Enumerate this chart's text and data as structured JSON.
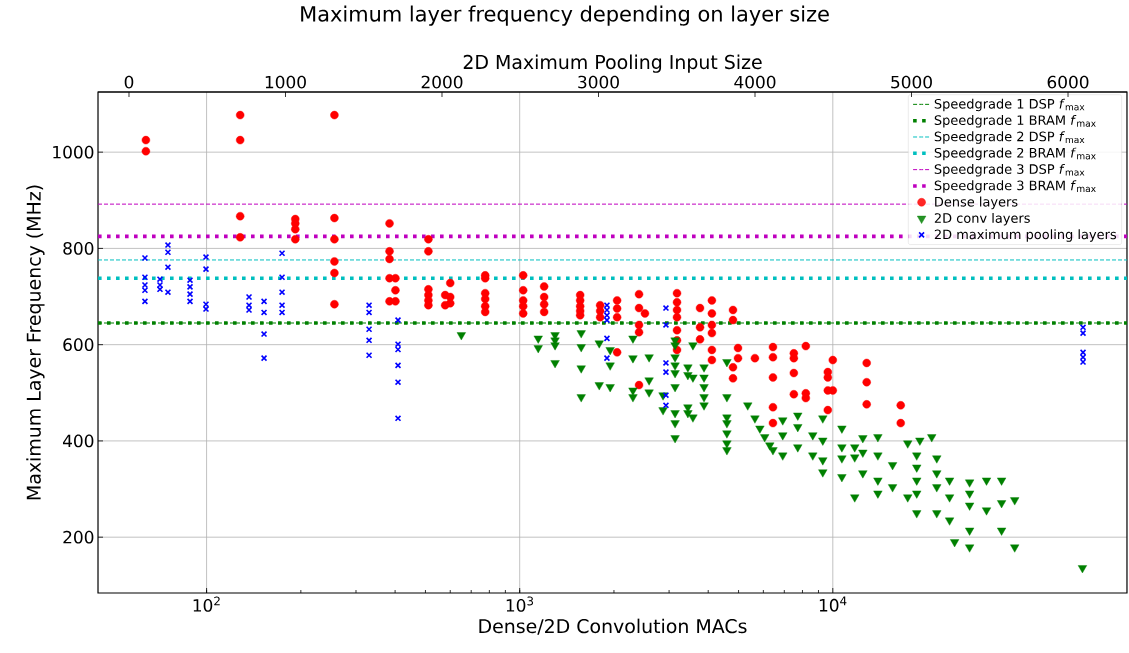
{
  "chart_data": {
    "type": "scatter",
    "title": "Maximum layer frequency depending on layer size",
    "xlabel": "Dense/2D Convolution MACs",
    "x2label": "2D Maximum Pooling Input Size",
    "ylabel": "Maximum Layer Frequency (MHz)",
    "log": "x",
    "grid": true,
    "legend": "top right",
    "xlim": [
      45,
      87000
    ],
    "xticks": [
      {
        "value": 100,
        "label": "10$^{2}$"
      },
      {
        "value": 1000,
        "label": "10$^{3}$"
      },
      {
        "value": 10000,
        "label": "10$^{4}$"
      }
    ],
    "x2lim": [
      -198,
      6377
    ],
    "x2ticks": [
      0,
      1000,
      2000,
      3000,
      4000,
      5000,
      6000
    ],
    "ylim": [
      84,
      1125
    ],
    "yticks": [
      200,
      400,
      600,
      800,
      1000
    ],
    "ref_lines": [
      {
        "axis": "y",
        "value": 645,
        "label": "Speedgrade 1 DSP *f*$_{max}$",
        "color": "#008000",
        "line_style": "dashed"
      },
      {
        "axis": "y",
        "value": 645,
        "label": "Speedgrade 1 BRAM *f*$_{max}$",
        "color": "#008000",
        "line_style": "dotted"
      },
      {
        "axis": "y",
        "value": 776,
        "label": "Speedgrade 2 DSP *f*$_{max}$",
        "color": "#00bfbf",
        "line_style": "dashed"
      },
      {
        "axis": "y",
        "value": 738,
        "label": "Speedgrade 2 BRAM *f*$_{max}$",
        "color": "#00bfbf",
        "line_style": "dotted"
      },
      {
        "axis": "y",
        "value": 892,
        "label": "Speedgrade 3 DSP *f*$_{max}$",
        "color": "#bf00bf",
        "line_style": "dashed"
      },
      {
        "axis": "y",
        "value": 825,
        "label": "Speedgrade 3 BRAM *f*$_{max}$",
        "color": "#bf00bf",
        "line_style": "dotted"
      }
    ],
    "series": [
      {
        "name": "Dense layers",
        "color": "#ff0000",
        "marker": "circle",
        "x": [
          64,
          64,
          128,
          128,
          128,
          128,
          192,
          192,
          192,
          192,
          256,
          256,
          256,
          256,
          256,
          256,
          384,
          384,
          384,
          384,
          384,
          401,
          401,
          401,
          511,
          511,
          511,
          511,
          511,
          511,
          578,
          578,
          600,
          600,
          600,
          776,
          776,
          776,
          776,
          776,
          776,
          1026,
          1026,
          1026,
          1026,
          1026,
          1197,
          1197,
          1197,
          1197,
          1560,
          1560,
          1560,
          1560,
          1560,
          1807,
          1807,
          1807,
          2047,
          2047,
          2047,
          2047,
          2405,
          2405,
          2405,
          2405,
          2405,
          2512,
          3180,
          3180,
          3180,
          3180,
          3180,
          3180,
          3180,
          3767,
          3767,
          3767,
          4110,
          4110,
          4110,
          4110,
          4110,
          4110,
          4800,
          4800,
          4800,
          4800,
          4980,
          4980,
          5640,
          6440,
          6440,
          6440,
          6440,
          6440,
          7510,
          7510,
          7510,
          7510,
          8200,
          8200,
          8200,
          9640,
          9640,
          9640,
          9640,
          10000,
          10000,
          12830,
          12830,
          12830,
          16480,
          16480
        ],
        "values": [
          1025,
          1002,
          1077,
          1025,
          867,
          823,
          861,
          852,
          840,
          819,
          1077,
          863,
          819,
          773,
          749,
          684,
          852,
          794,
          778,
          738,
          690,
          738,
          713,
          690,
          819,
          794,
          715,
          703,
          692,
          682,
          703,
          682,
          728,
          699,
          686,
          744,
          738,
          707,
          695,
          680,
          668,
          744,
          713,
          692,
          680,
          665,
          721,
          699,
          684,
          668,
          703,
          692,
          680,
          670,
          661,
          682,
          670,
          657,
          692,
          675,
          657,
          584,
          705,
          676,
          641,
          626,
          516,
          665,
          707,
          688,
          672,
          657,
          630,
          609,
          589,
          676,
          636,
          611,
          692,
          665,
          641,
          624,
          589,
          568,
          672,
          651,
          553,
          530,
          593,
          572,
          572,
          595,
          574,
          532,
          470,
          437,
          582,
          572,
          541,
          497,
          597,
          499,
          489,
          543,
          532,
          505,
          464,
          568,
          505,
          562,
          522,
          476,
          474,
          437
        ]
      },
      {
        "name": "2D conv layers",
        "color": "#008000",
        "marker": "triangle",
        "x": [
          651,
          1146,
          1146,
          1297,
          1297,
          1297,
          1297,
          1572,
          1572,
          1572,
          1572,
          1795,
          1795,
          1945,
          1945,
          1945,
          2300,
          2300,
          2300,
          2300,
          2590,
          2590,
          2590,
          2870,
          2870,
          3135,
          3135,
          3135,
          3135,
          3135,
          3135,
          3135,
          3135,
          3135,
          3445,
          3445,
          3445,
          3445,
          3575,
          3575,
          3575,
          3880,
          3880,
          3880,
          3880,
          3880,
          4590,
          4590,
          4590,
          4590,
          4590,
          4590,
          4590,
          5350,
          5640,
          5850,
          6060,
          6290,
          6440,
          6920,
          6920,
          6920,
          7730,
          7730,
          7730,
          8630,
          8630,
          9290,
          9290,
          9290,
          9290,
          10690,
          10690,
          10690,
          10690,
          11750,
          11750,
          11750,
          12470,
          12470,
          12470,
          13930,
          13930,
          13930,
          13930,
          15520,
          15520,
          17350,
          17350,
          18540,
          18540,
          18540,
          18540,
          18540,
          18970,
          20700,
          21480,
          21480,
          21480,
          21480,
          23600,
          23600,
          23600,
          24490,
          27350,
          27350,
          27350,
          27350,
          27350,
          30970,
          30970,
          34600,
          34600,
          34600,
          38100,
          38100,
          62700
        ],
        "values": [
          620,
          613,
          593,
          620,
          609,
          599,
          562,
          624,
          595,
          551,
          491,
          603,
          516,
          589,
          557,
          512,
          613,
          572,
          505,
          491,
          574,
          526,
          501,
          495,
          464,
          609,
          599,
          574,
          557,
          541,
          512,
          458,
          437,
          406,
          553,
          537,
          470,
          458,
          599,
          532,
          449,
          553,
          532,
          512,
          491,
          474,
          564,
          491,
          449,
          437,
          416,
          395,
          381,
          474,
          447,
          426,
          408,
          391,
          381,
          443,
          412,
          370,
          453,
          429,
          387,
          412,
          370,
          447,
          401,
          360,
          335,
          426,
          387,
          364,
          325,
          387,
          366,
          283,
          406,
          376,
          333,
          408,
          370,
          318,
          291,
          350,
          304,
          395,
          283,
          370,
          345,
          318,
          291,
          250,
          401,
          408,
          364,
          333,
          304,
          250,
          318,
          283,
          235,
          190,
          314,
          291,
          266,
          214,
          179,
          318,
          256,
          318,
          271,
          214,
          277,
          179,
          136
        ]
      },
      {
        "name": "2D maximum pooling layers",
        "color": "#0000ff",
        "marker": "cross",
        "axis": "x2",
        "x": [
          102,
          102,
          102,
          102,
          102,
          198,
          198,
          198,
          249,
          249,
          249,
          249,
          390,
          390,
          390,
          390,
          492,
          492,
          492,
          492,
          767,
          767,
          767,
          863,
          863,
          863,
          863,
          978,
          978,
          978,
          978,
          978,
          1534,
          1534,
          1534,
          1534,
          1534,
          1719,
          1719,
          1719,
          1719,
          1719,
          1719,
          3054,
          3054,
          3054,
          3054,
          3054,
          3054,
          3431,
          3431,
          3431,
          3431,
          3431,
          3431,
          6096,
          6096,
          6096,
          6096,
          6096
        ],
        "values": [
          780,
          740,
          724,
          713,
          690,
          736,
          724,
          715,
          807,
          792,
          761,
          709,
          734,
          720,
          705,
          690,
          782,
          757,
          684,
          674,
          699,
          682,
          672,
          690,
          667,
          622,
          572,
          790,
          740,
          709,
          682,
          667,
          682,
          667,
          632,
          609,
          578,
          651,
          601,
          590,
          557,
          522,
          447,
          682,
          672,
          661,
          651,
          613,
          572,
          676,
          641,
          562,
          543,
          495,
          474,
          636,
          624,
          584,
          574,
          564
        ]
      }
    ]
  }
}
